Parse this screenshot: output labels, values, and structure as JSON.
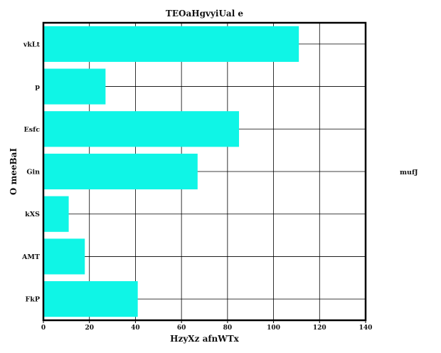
{
  "chart_data": {
    "type": "bar",
    "orientation": "horizontal",
    "title": "TEOaHgvyiUal e",
    "xlabel": "HzyXz  afnWTx",
    "ylabel": "O meeBaI",
    "legend_label": "mufJ",
    "categories": [
      "vkLt",
      "p",
      "Esfc",
      "Gin",
      "kXS",
      "AMT",
      "FkP"
    ],
    "values": [
      111,
      27,
      85,
      67,
      11,
      18,
      41
    ],
    "xlim": [
      0,
      140
    ],
    "x_ticks": [
      0,
      20,
      40,
      60,
      80,
      100,
      120,
      140
    ],
    "grid": true,
    "bar_color": "#0ff5e6",
    "legend_placement": "right"
  }
}
